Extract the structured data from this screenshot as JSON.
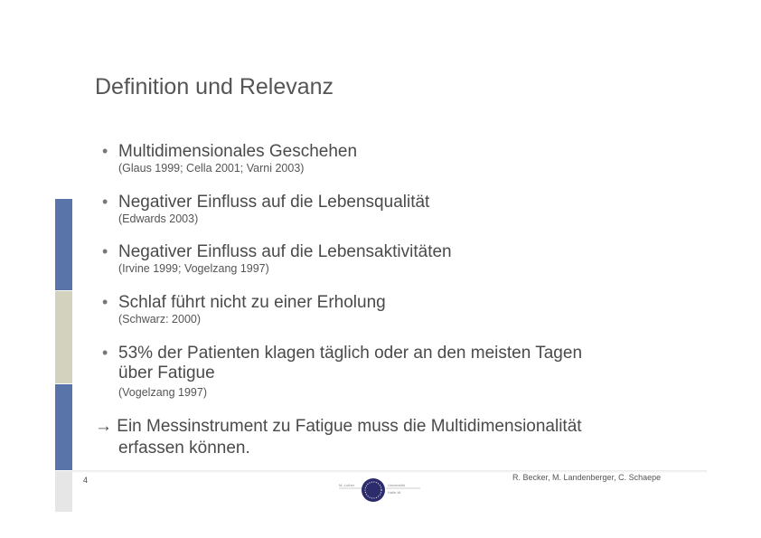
{
  "slide": {
    "title": "Definition und Relevanz",
    "bullets": [
      {
        "text": "Multidimensionales Geschehen",
        "ref": "(Glaus 1999; Cella 2001; Varni 2003)"
      },
      {
        "text": "Negativer Einfluss auf die Lebensqualität",
        "ref": "(Edwards 2003)"
      },
      {
        "text": "Negativer Einfluss auf die Lebensaktivitäten",
        "ref": "(Irvine 1999; Vogelzang 1997)"
      },
      {
        "text": "Schlaf führt nicht zu einer Erholung",
        "ref": "(Schwarz: 2000)"
      },
      {
        "text": "53% der Patienten klagen täglich oder an den meisten Tagen",
        "text2": "über Fatigue",
        "ref": "(Vogelzang 1997)"
      }
    ],
    "bullet_symbol": "•",
    "conclusion": {
      "arrow": "→",
      "line1": "Ein Messinstrument zu Fatigue muss die Multidimensionalität",
      "line2": "erfassen können."
    }
  },
  "footer": {
    "page_number": "4",
    "authors": "R. Becker, M. Landenberger, C. Schaepe",
    "logo_text": "Martin-Luther-Universität Halle-Wittenberg"
  },
  "colors": {
    "blue": "#5874a8",
    "beige": "#d2d2bf",
    "grey": "#e6e6e6"
  }
}
